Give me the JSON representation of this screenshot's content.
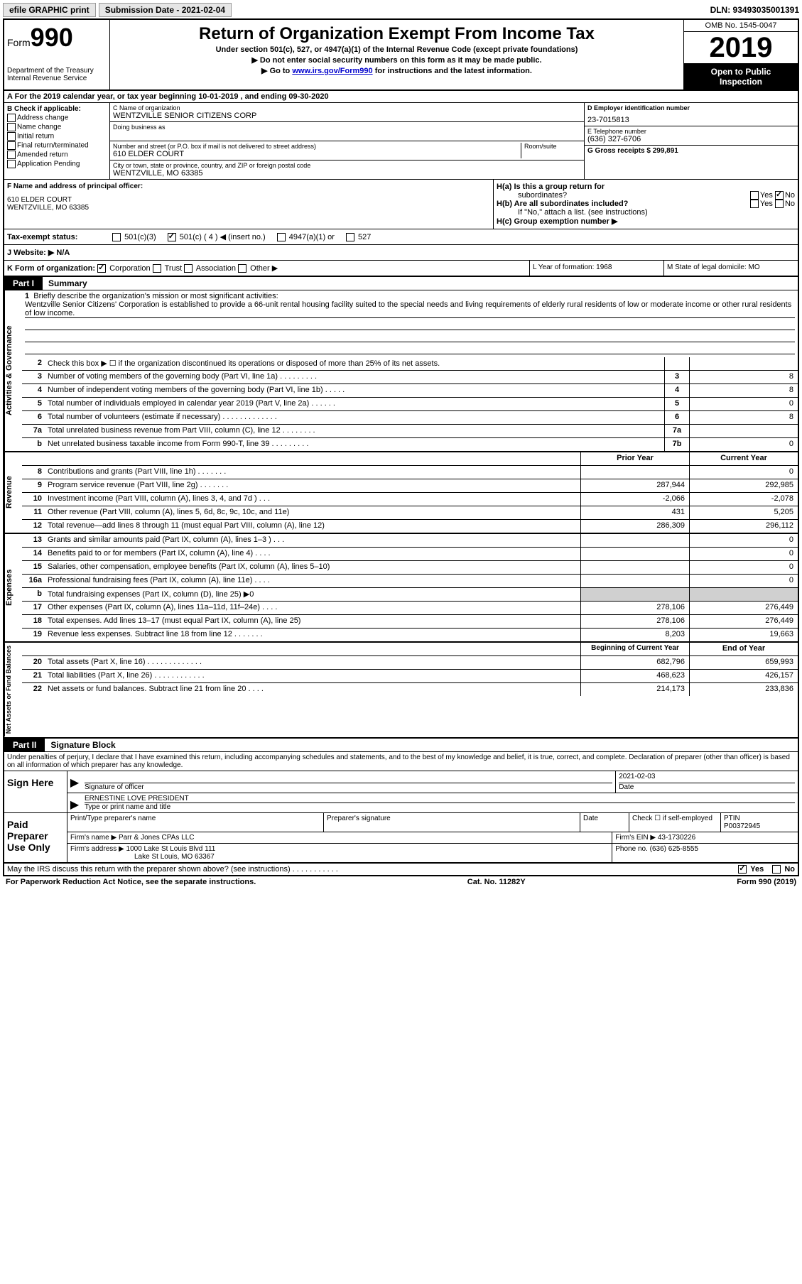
{
  "topbar": {
    "efile": "efile GRAPHIC print",
    "submission": "Submission Date - 2021-02-04",
    "dln": "DLN: 93493035001391"
  },
  "header": {
    "form_prefix": "Form",
    "form_num": "990",
    "dept1": "Department of the Treasury",
    "dept2": "Internal Revenue Service",
    "title": "Return of Organization Exempt From Income Tax",
    "sub1": "Under section 501(c), 527, or 4947(a)(1) of the Internal Revenue Code (except private foundations)",
    "sub2": "▶ Do not enter social security numbers on this form as it may be made public.",
    "sub3a": "▶ Go to ",
    "sub3_link": "www.irs.gov/Form990",
    "sub3b": " for instructions and the latest information.",
    "omb": "OMB No. 1545-0047",
    "year": "2019",
    "inspect1": "Open to Public",
    "inspect2": "Inspection"
  },
  "rowA": "A For the 2019 calendar year, or tax year beginning 10-01-2019     , and ending 09-30-2020",
  "colB": {
    "title": "B Check if applicable:",
    "items": [
      "Address change",
      "Name change",
      "Initial return",
      "Final return/terminated",
      "Amended return",
      "Application Pending"
    ]
  },
  "colC": {
    "c_label": "C Name of organization",
    "c_val": "WENTZVILLE SENIOR CITIZENS CORP",
    "dba_label": "Doing business as",
    "addr_label": "Number and street (or P.O. box if mail is not delivered to street address)",
    "addr_val": "610 ELDER COURT",
    "room_label": "Room/suite",
    "city_label": "City or town, state or province, country, and ZIP or foreign postal code",
    "city_val": "WENTZVILLE, MO  63385"
  },
  "colD": {
    "d_label": "D Employer identification number",
    "d_val": "23-7015813",
    "e_label": "E Telephone number",
    "e_val": "(636) 327-6706",
    "g_label": "G Gross receipts $ 299,891"
  },
  "rowF": {
    "label": "F  Name and address of principal officer:",
    "line1": "610 ELDER COURT",
    "line2": "WENTZVILLE, MO  63385"
  },
  "rowH": {
    "ha": "H(a)  Is this a group return for",
    "ha2": "subordinates?",
    "hb": "H(b)  Are all subordinates included?",
    "hnote": "If \"No,\" attach a list. (see instructions)",
    "hc": "H(c)  Group exemption number ▶",
    "yes": "Yes",
    "no": "No"
  },
  "rowI": {
    "label": "Tax-exempt status:",
    "opts": [
      "501(c)(3)",
      "501(c) ( 4 ) ◀ (insert no.)",
      "4947(a)(1) or",
      "527"
    ]
  },
  "rowJ": {
    "label": "J   Website: ▶",
    "val": "N/A"
  },
  "rowK": {
    "label": "K Form of organization:",
    "opts": [
      "Corporation",
      "Trust",
      "Association",
      "Other ▶"
    ]
  },
  "rowL": "L Year of formation: 1968",
  "rowM": "M State of legal domicile: MO",
  "part1": {
    "tab": "Part I",
    "title": "Summary"
  },
  "side": {
    "ag": "Activities & Governance",
    "rev": "Revenue",
    "exp": "Expenses",
    "net": "Net Assets or Fund Balances"
  },
  "mission": {
    "num": "1",
    "label": "Briefly describe the organization's mission or most significant activities:",
    "text": "Wentzville Senior Citizens' Corporation is established to provide a 66-unit rental housing facility suited to the special needs and living requirements of elderly rural residents of low or moderate income or other rural residents of low income."
  },
  "lines_ag": [
    {
      "n": "2",
      "t": "Check this box ▶ ☐  if the organization discontinued its operations or disposed of more than 25% of its net assets.",
      "box": "",
      "v": ""
    },
    {
      "n": "3",
      "t": "Number of voting members of the governing body (Part VI, line 1a)   .    .    .    .    .    .    .    .    .",
      "box": "3",
      "v": "8"
    },
    {
      "n": "4",
      "t": "Number of independent voting members of the governing body (Part VI, line 1b)   .    .    .    .    .",
      "box": "4",
      "v": "8"
    },
    {
      "n": "5",
      "t": "Total number of individuals employed in calendar year 2019 (Part V, line 2a)   .    .    .    .    .    .",
      "box": "5",
      "v": "0"
    },
    {
      "n": "6",
      "t": "Total number of volunteers (estimate if necessary)   .    .    .    .    .    .    .    .    .    .    .    .    .",
      "box": "6",
      "v": "8"
    },
    {
      "n": "7a",
      "t": "Total unrelated business revenue from Part VIII, column (C), line 12   .    .    .    .    .    .    .    .",
      "box": "7a",
      "v": ""
    },
    {
      "n": "b",
      "t": "Net unrelated business taxable income from Form 990-T, line 39   .    .    .    .    .    .    .    .    .",
      "box": "7b",
      "v": "0"
    }
  ],
  "colhdr": {
    "py": "Prior Year",
    "cy": "Current Year"
  },
  "lines_rev": [
    {
      "n": "8",
      "t": "Contributions and grants (Part VIII, line 1h)   .    .    .    .    .    .    .",
      "py": "",
      "cy": "0"
    },
    {
      "n": "9",
      "t": "Program service revenue (Part VIII, line 2g)   .    .    .    .    .    .    .",
      "py": "287,944",
      "cy": "292,985"
    },
    {
      "n": "10",
      "t": "Investment income (Part VIII, column (A), lines 3, 4, and 7d )   .    .    .",
      "py": "-2,066",
      "cy": "-2,078"
    },
    {
      "n": "11",
      "t": "Other revenue (Part VIII, column (A), lines 5, 6d, 8c, 9c, 10c, and 11e)",
      "py": "431",
      "cy": "5,205"
    },
    {
      "n": "12",
      "t": "Total revenue—add lines 8 through 11 (must equal Part VIII, column (A), line 12)",
      "py": "286,309",
      "cy": "296,112"
    }
  ],
  "lines_exp": [
    {
      "n": "13",
      "t": "Grants and similar amounts paid (Part IX, column (A), lines 1–3 )   .    .    .",
      "py": "",
      "cy": "0"
    },
    {
      "n": "14",
      "t": "Benefits paid to or for members (Part IX, column (A), line 4)   .    .    .    .",
      "py": "",
      "cy": "0"
    },
    {
      "n": "15",
      "t": "Salaries, other compensation, employee benefits (Part IX, column (A), lines 5–10)",
      "py": "",
      "cy": "0"
    },
    {
      "n": "16a",
      "t": "Professional fundraising fees (Part IX, column (A), line 11e)   .    .    .    .",
      "py": "",
      "cy": "0"
    },
    {
      "n": "b",
      "t": "Total fundraising expenses (Part IX, column (D), line 25) ▶0",
      "py": "shade",
      "cy": "shade"
    },
    {
      "n": "17",
      "t": "Other expenses (Part IX, column (A), lines 11a–11d, 11f–24e)   .    .    .    .",
      "py": "278,106",
      "cy": "276,449"
    },
    {
      "n": "18",
      "t": "Total expenses. Add lines 13–17 (must equal Part IX, column (A), line 25)",
      "py": "278,106",
      "cy": "276,449"
    },
    {
      "n": "19",
      "t": "Revenue less expenses. Subtract line 18 from line 12   .    .    .    .    .    .    .",
      "py": "8,203",
      "cy": "19,663"
    }
  ],
  "colhdr2": {
    "py": "Beginning of Current Year",
    "cy": "End of Year"
  },
  "lines_net": [
    {
      "n": "20",
      "t": "Total assets (Part X, line 16)   .    .    .    .    .    .    .    .    .    .    .    .    .",
      "py": "682,796",
      "cy": "659,993"
    },
    {
      "n": "21",
      "t": "Total liabilities (Part X, line 26)   .    .    .    .    .    .    .    .    .    .    .    .",
      "py": "468,623",
      "cy": "426,157"
    },
    {
      "n": "22",
      "t": "Net assets or fund balances. Subtract line 21 from line 20   .    .    .    .",
      "py": "214,173",
      "cy": "233,836"
    }
  ],
  "part2": {
    "tab": "Part II",
    "title": "Signature Block"
  },
  "sig": {
    "intro": "Under penalties of perjury, I declare that I have examined this return, including accompanying schedules and statements, and to the best of my knowledge and belief, it is true, correct, and complete. Declaration of preparer (other than officer) is based on all information of which preparer has any knowledge.",
    "sign_here": "Sign Here",
    "sig_officer": "Signature of officer",
    "date": "Date",
    "date_val": "2021-02-03",
    "name_title": "ERNESTINE LOVE PRESIDENT",
    "name_label": "Type or print name and title",
    "paid": "Paid Preparer Use Only",
    "prep_name": "Print/Type preparer's name",
    "prep_sig": "Preparer's signature",
    "prep_date": "Date",
    "check_se": "Check ☐ if self-employed",
    "ptin_label": "PTIN",
    "ptin": "P00372945",
    "firm_name_l": "Firm's name      ▶",
    "firm_name": "Parr & Jones CPAs LLC",
    "firm_ein_l": "Firm's EIN ▶",
    "firm_ein": "43-1730226",
    "firm_addr_l": "Firm's address ▶",
    "firm_addr1": "1000 Lake St Louis Blvd 111",
    "firm_addr2": "Lake St Louis, MO  63367",
    "phone_l": "Phone no.",
    "phone": "(636) 625-8555",
    "discuss": "May the IRS discuss this return with the preparer shown above? (see instructions)   .    .    .    .    .    .    .    .    .    .    .",
    "yes": "Yes",
    "no": "No"
  },
  "footer": {
    "pra": "For Paperwork Reduction Act Notice, see the separate instructions.",
    "cat": "Cat. No. 11282Y",
    "form": "Form 990 (2019)"
  }
}
